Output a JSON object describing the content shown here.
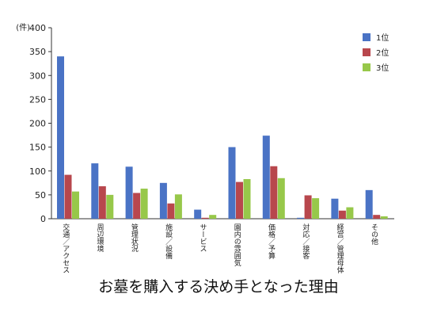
{
  "chart_data": {
    "type": "bar",
    "title": "お墓を購入する決め手となった理由",
    "y_unit": "(件)",
    "ylim": [
      0,
      400
    ],
    "yticks": [
      0,
      50,
      100,
      150,
      200,
      250,
      300,
      350,
      400
    ],
    "grid": false,
    "legend_position": "top-right",
    "categories": [
      "交通／アクセス",
      "周辺環境",
      "管理状況",
      "施設／設備",
      "サービス",
      "園内の雰囲気",
      "価格／予算",
      "対応／接客",
      "経営／管理母体",
      "その他"
    ],
    "series": [
      {
        "name": "1位",
        "color": "#4a73c5",
        "values": [
          340,
          116,
          109,
          75,
          19,
          150,
          174,
          2,
          42,
          60
        ]
      },
      {
        "name": "2位",
        "color": "#b8474d",
        "values": [
          92,
          68,
          54,
          32,
          2,
          77,
          110,
          49,
          17,
          8
        ]
      },
      {
        "name": "3位",
        "color": "#97c84a",
        "values": [
          57,
          50,
          63,
          51,
          8,
          83,
          85,
          43,
          24,
          5
        ]
      }
    ]
  }
}
